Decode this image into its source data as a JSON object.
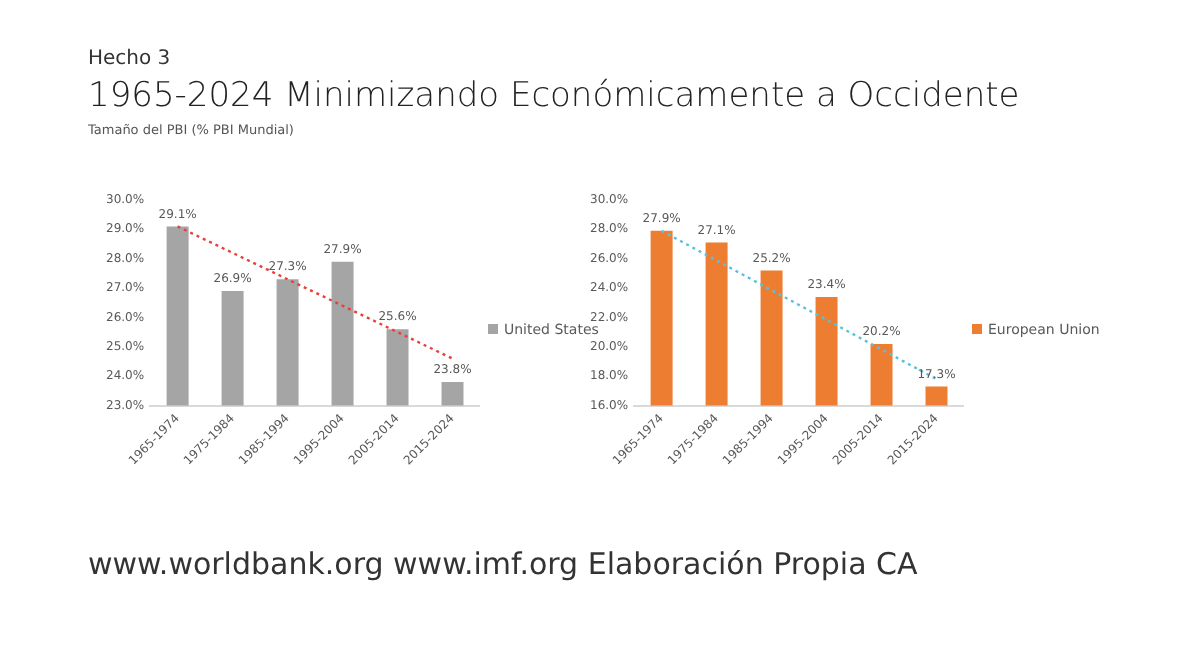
{
  "chart_data": [
    {
      "type": "bar",
      "title": "1965-2024 Minimizando Económicamente a Occidente",
      "subtitle": "Tamaño del PBI (% PBI Mundial)",
      "annotations": [
        "Hecho 3",
        "www.worldbank.org www.imf.org Elaboración Propia CA"
      ],
      "categories": [
        "1965-1974",
        "1975-1984",
        "1985-1994",
        "1995-2004",
        "2005-2014",
        "2015-2024"
      ],
      "series": [
        {
          "name": "United States",
          "color": "#a5a5a5",
          "values": [
            29.1,
            26.9,
            27.3,
            27.9,
            25.6,
            23.8
          ],
          "value_labels": [
            "29.1%",
            "26.9%",
            "27.3%",
            "27.9%",
            "25.6%",
            "23.8%"
          ]
        },
        {
          "type": "line",
          "color": "#e8403a",
          "line_style": "dotted",
          "marker": "none",
          "values": [
            29.1,
            null,
            null,
            null,
            null,
            24.6
          ]
        }
      ],
      "ylim": [
        23,
        30
      ],
      "yticks": [
        {
          "value": 23,
          "label": "23.0%"
        },
        {
          "value": 24,
          "label": "24.0%"
        },
        {
          "value": 25,
          "label": "25.0%"
        },
        {
          "value": 26,
          "label": "26.0%"
        },
        {
          "value": 27,
          "label": "27.0%"
        },
        {
          "value": 28,
          "label": "28.0%"
        },
        {
          "value": 29,
          "label": "29.0%"
        },
        {
          "value": 30,
          "label": "30.0%"
        }
      ],
      "legend": "right",
      "grid": false
    },
    {
      "type": "bar",
      "categories": [
        "1965-1974",
        "1975-1984",
        "1985-1994",
        "1995-2004",
        "2005-2014",
        "2015-2024"
      ],
      "series": [
        {
          "name": "European Union",
          "color": "#ed7d31",
          "values": [
            27.9,
            27.1,
            25.2,
            23.4,
            20.2,
            17.3
          ],
          "value_labels": [
            "27.9%",
            "27.1%",
            "25.2%",
            "23.4%",
            "20.2%",
            "17.3%"
          ]
        },
        {
          "type": "line",
          "color": "#5bc0de",
          "line_style": "dotted",
          "marker": "none",
          "values": [
            27.9,
            null,
            null,
            null,
            null,
            17.8
          ]
        }
      ],
      "ylim": [
        16,
        30
      ],
      "yticks": [
        {
          "value": 16,
          "label": "16.0%"
        },
        {
          "value": 18,
          "label": "18.0%"
        },
        {
          "value": 20,
          "label": "20.0%"
        },
        {
          "value": 22,
          "label": "22.0%"
        },
        {
          "value": 24,
          "label": "24.0%"
        },
        {
          "value": 26,
          "label": "26.0%"
        },
        {
          "value": 28,
          "label": "28.0%"
        },
        {
          "value": 30,
          "label": "30.0%"
        }
      ],
      "legend": "right",
      "grid": false
    }
  ]
}
